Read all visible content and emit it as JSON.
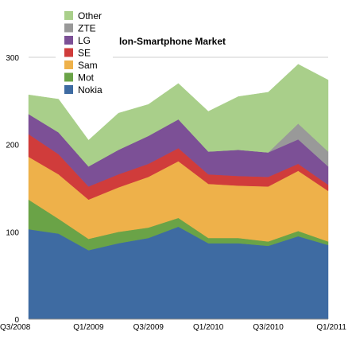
{
  "chart_data": {
    "type": "area",
    "stacked": true,
    "title": "lon-Smartphone Market",
    "xlabel": "",
    "ylabel": "",
    "ylim": [
      0,
      300
    ],
    "yticks": [
      0,
      100,
      200,
      300
    ],
    "grid": "horizontal",
    "legend_position": "top-left",
    "legend_order": [
      "Other",
      "ZTE",
      "LG",
      "SE",
      "Sam",
      "Mot",
      "Nokia"
    ],
    "categories": [
      "Q3/2008",
      "Q4/2008",
      "Q1/2009",
      "Q2/2009",
      "Q3/2009",
      "Q4/2009",
      "Q1/2010",
      "Q2/2010",
      "Q3/2010",
      "Q4/2010",
      "Q1/2011"
    ],
    "x_tick_labels": [
      "Q3/2008",
      "Q1/2009",
      "Q3/2009",
      "Q1/2010",
      "Q3/2010",
      "Q1/2011"
    ],
    "series": [
      {
        "name": "Nokia",
        "color": "#3e6ba2",
        "values": [
          103,
          98,
          79,
          87,
          93,
          106,
          87,
          87,
          84,
          95,
          85
        ]
      },
      {
        "name": "Mot",
        "color": "#6aa347",
        "values": [
          34,
          17,
          13,
          13,
          12,
          10,
          6,
          6,
          5,
          6,
          4
        ]
      },
      {
        "name": "Sam",
        "color": "#eeb14a",
        "values": [
          49,
          51,
          45,
          51,
          58,
          65,
          62,
          60,
          63,
          69,
          58
        ]
      },
      {
        "name": "SE",
        "color": "#d03c3b",
        "values": [
          26,
          23,
          15,
          15,
          15,
          15,
          11,
          11,
          11,
          8,
          7
        ]
      },
      {
        "name": "LG",
        "color": "#7c5096",
        "values": [
          23,
          25,
          23,
          28,
          32,
          33,
          26,
          30,
          28,
          28,
          21
        ]
      },
      {
        "name": "ZTE",
        "color": "#999999",
        "values": [
          0,
          0,
          0,
          0,
          0,
          0,
          0,
          0,
          0,
          18,
          17
        ]
      },
      {
        "name": "Other",
        "color": "#a9cf8a",
        "values": [
          22,
          38,
          30,
          42,
          36,
          41,
          46,
          61,
          69,
          68,
          82
        ]
      }
    ]
  }
}
